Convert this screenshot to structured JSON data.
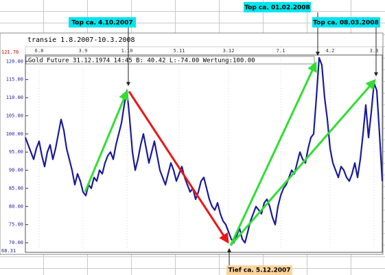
{
  "chart_data": {
    "type": "line",
    "title": "transie 1.8.2007-10.3.2008",
    "subtitle": "Gold Future 31.12.1974 14:45 B: 40.42 L:-74.00 Wertung:100.00",
    "annotations": [
      "Top ca. 4.10.2007",
      "Top ca. 01.02.2008",
      "Top ca. 08.03.2008",
      "Tief ca. 5.12.2007"
    ],
    "categories": [
      null,
      null,
      null,
      null,
      null,
      "6.8",
      null,
      null,
      null,
      null,
      null,
      null,
      null,
      null,
      null,
      null,
      null,
      null,
      null,
      null,
      null,
      "3.9",
      null,
      null,
      null,
      null,
      null,
      null,
      null,
      null,
      null,
      null,
      null,
      null,
      null,
      null,
      null,
      "1.10",
      null,
      null,
      null,
      null,
      null,
      null,
      null,
      null,
      null,
      null,
      null,
      null,
      null,
      null,
      null,
      null,
      null,
      null,
      "5.11",
      null,
      null,
      null,
      null,
      null,
      null,
      null,
      null,
      null,
      null,
      null,
      null,
      null,
      null,
      null,
      null,
      null,
      "3.12",
      null,
      null,
      null,
      null,
      null,
      null,
      null,
      null,
      null,
      null,
      null,
      null,
      null,
      null,
      null,
      null,
      null,
      null,
      "7.1",
      null,
      null,
      null,
      null,
      null,
      null,
      null,
      null,
      null,
      null,
      null,
      null,
      null,
      null,
      null,
      null,
      null,
      "4.2",
      null,
      null,
      null,
      null,
      null,
      null,
      null,
      null,
      null,
      null,
      null,
      null,
      null,
      null,
      null,
      "3.3",
      null,
      null,
      null
    ],
    "values": [
      99,
      97,
      95,
      93,
      96,
      98,
      94,
      91,
      95,
      97,
      93,
      96,
      100,
      104,
      101,
      96,
      93,
      90,
      86,
      89,
      87,
      84,
      83,
      86,
      85,
      88,
      87,
      90,
      89,
      92,
      94,
      95,
      93,
      97,
      100,
      103,
      108,
      112,
      104,
      95,
      90,
      93,
      97,
      100,
      96,
      92,
      95,
      98,
      94,
      90,
      88,
      86,
      89,
      92,
      90,
      87,
      89,
      91,
      88,
      86,
      84,
      85,
      82,
      84,
      87,
      88,
      85,
      82,
      80,
      79,
      81,
      78,
      76,
      75,
      73,
      71,
      70,
      72,
      74,
      71,
      70,
      73,
      76,
      78,
      80,
      79,
      78,
      81,
      82,
      80,
      77,
      75,
      80,
      83,
      85,
      86,
      88,
      90,
      89,
      92,
      95,
      93,
      92,
      96,
      99,
      100,
      110,
      121,
      119,
      110,
      104,
      96,
      92,
      90,
      88,
      91,
      90,
      88,
      87,
      89,
      92,
      88,
      93,
      100,
      108,
      99,
      106,
      114,
      112,
      100,
      87
    ],
    "color": "#1a1a9c",
    "ylim": [
      68.31,
      121.76
    ],
    "yticks": [
      {
        "value": 120,
        "label": "120.00"
      },
      {
        "value": 115,
        "label": "115.00"
      },
      {
        "value": 110,
        "label": "110.00"
      },
      {
        "value": 105,
        "label": "105.00"
      },
      {
        "value": 100,
        "label": "100.00"
      },
      {
        "value": 95,
        "label": "95.00"
      },
      {
        "value": 90,
        "label": "90.00"
      },
      {
        "value": 85,
        "label": "85.00"
      },
      {
        "value": 80,
        "label": "80.00"
      },
      {
        "value": 75,
        "label": "75.00"
      },
      {
        "value": 70,
        "label": "70.00"
      }
    ]
  }
}
